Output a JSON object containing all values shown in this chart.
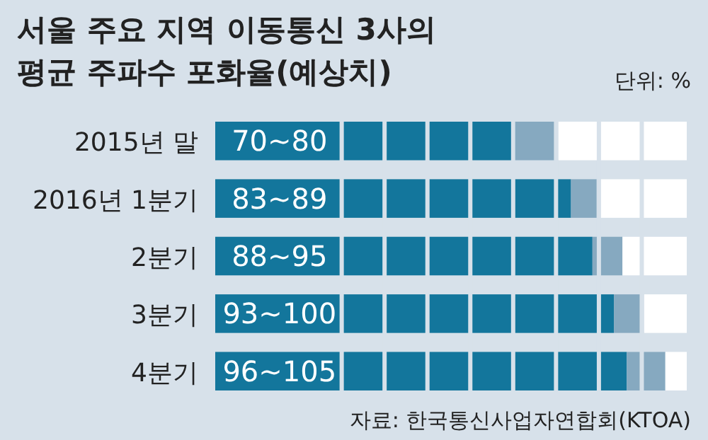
{
  "chart_data": {
    "type": "bar",
    "orientation": "horizontal",
    "stacked": true,
    "title": "서울 주요 지역 이동통신 3사의\n평균 주파수 포화율(예상치)",
    "categories": [
      "2015년 말",
      "2016년 1분기",
      "2분기",
      "3분기",
      "4분기"
    ],
    "series": [
      {
        "color": "#13769c",
        "values": [
          70,
          83,
          88,
          93,
          96
        ],
        "value_labels": [
          "70~80",
          "83~89",
          "88~95",
          "93~100",
          "96~105"
        ]
      },
      {
        "color": "#86a9c0",
        "values": [
          10,
          6,
          7,
          7,
          9
        ]
      },
      {
        "color": "#ffffff",
        "values": [
          30,
          21,
          15,
          10,
          5
        ]
      }
    ],
    "xlim": [
      0,
      110
    ],
    "annotations": [
      "단위: %",
      "자료: 한국통신사업자연합회(KTOA)"
    ]
  }
}
